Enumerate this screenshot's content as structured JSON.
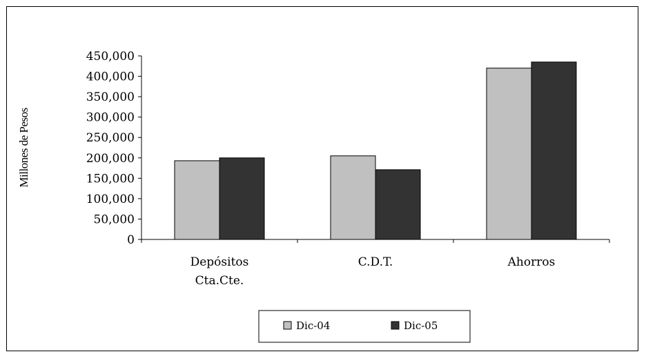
{
  "chart_data": {
    "type": "bar",
    "title": "",
    "xlabel": "",
    "ylabel": "Millones de Pesos",
    "ylim": [
      0,
      450000
    ],
    "yticks": [
      "0",
      "50,000",
      "100,000",
      "150,000",
      "200,000",
      "250,000",
      "300,000",
      "350,000",
      "400,000",
      "450,000"
    ],
    "categories": [
      [
        "Depósitos",
        "Cta.Cte."
      ],
      [
        "C.D.T."
      ],
      [
        "Ahorros"
      ]
    ],
    "series": [
      {
        "name": "Dic-04",
        "color": "#c0c0c0",
        "values": [
          193000,
          205000,
          420000
        ]
      },
      {
        "name": "Dic-05",
        "color": "#333333",
        "values": [
          200000,
          171000,
          435000
        ]
      }
    ],
    "legend_position": "bottom",
    "grid": false
  }
}
